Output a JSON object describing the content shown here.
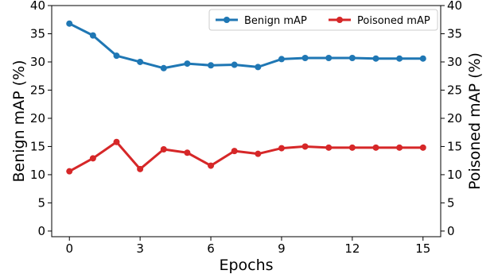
{
  "chart_data": {
    "type": "line",
    "xlabel": "Epochs",
    "ylabel_left": "Benign mAP (%)",
    "ylabel_right": "Poisoned mAP (%)",
    "x": [
      0,
      1,
      2,
      3,
      4,
      5,
      6,
      7,
      8,
      9,
      10,
      11,
      12,
      13,
      14,
      15
    ],
    "x_ticks": [
      0,
      3,
      6,
      9,
      12,
      15
    ],
    "xlim": [
      -0.75,
      15.75
    ],
    "ylim_left": [
      -1,
      40
    ],
    "ylim_right": [
      -1,
      40
    ],
    "y_ticks": [
      0,
      5,
      10,
      15,
      20,
      25,
      30,
      35,
      40
    ],
    "grid": false,
    "legend_position": "top-right",
    "series": [
      {
        "name": "Benign mAP",
        "axis": "left",
        "color": "#1f77b4",
        "values": [
          36.8,
          34.7,
          31.1,
          30.0,
          28.9,
          29.7,
          29.4,
          29.5,
          29.1,
          30.5,
          30.7,
          30.7,
          30.7,
          30.6,
          30.6,
          30.6
        ]
      },
      {
        "name": "Poisoned mAP",
        "axis": "right",
        "color": "#d62728",
        "values": [
          10.6,
          12.9,
          15.8,
          11.0,
          14.5,
          13.9,
          11.6,
          14.2,
          13.7,
          14.7,
          15.0,
          14.8,
          14.8,
          14.8,
          14.8,
          14.8
        ]
      }
    ]
  }
}
